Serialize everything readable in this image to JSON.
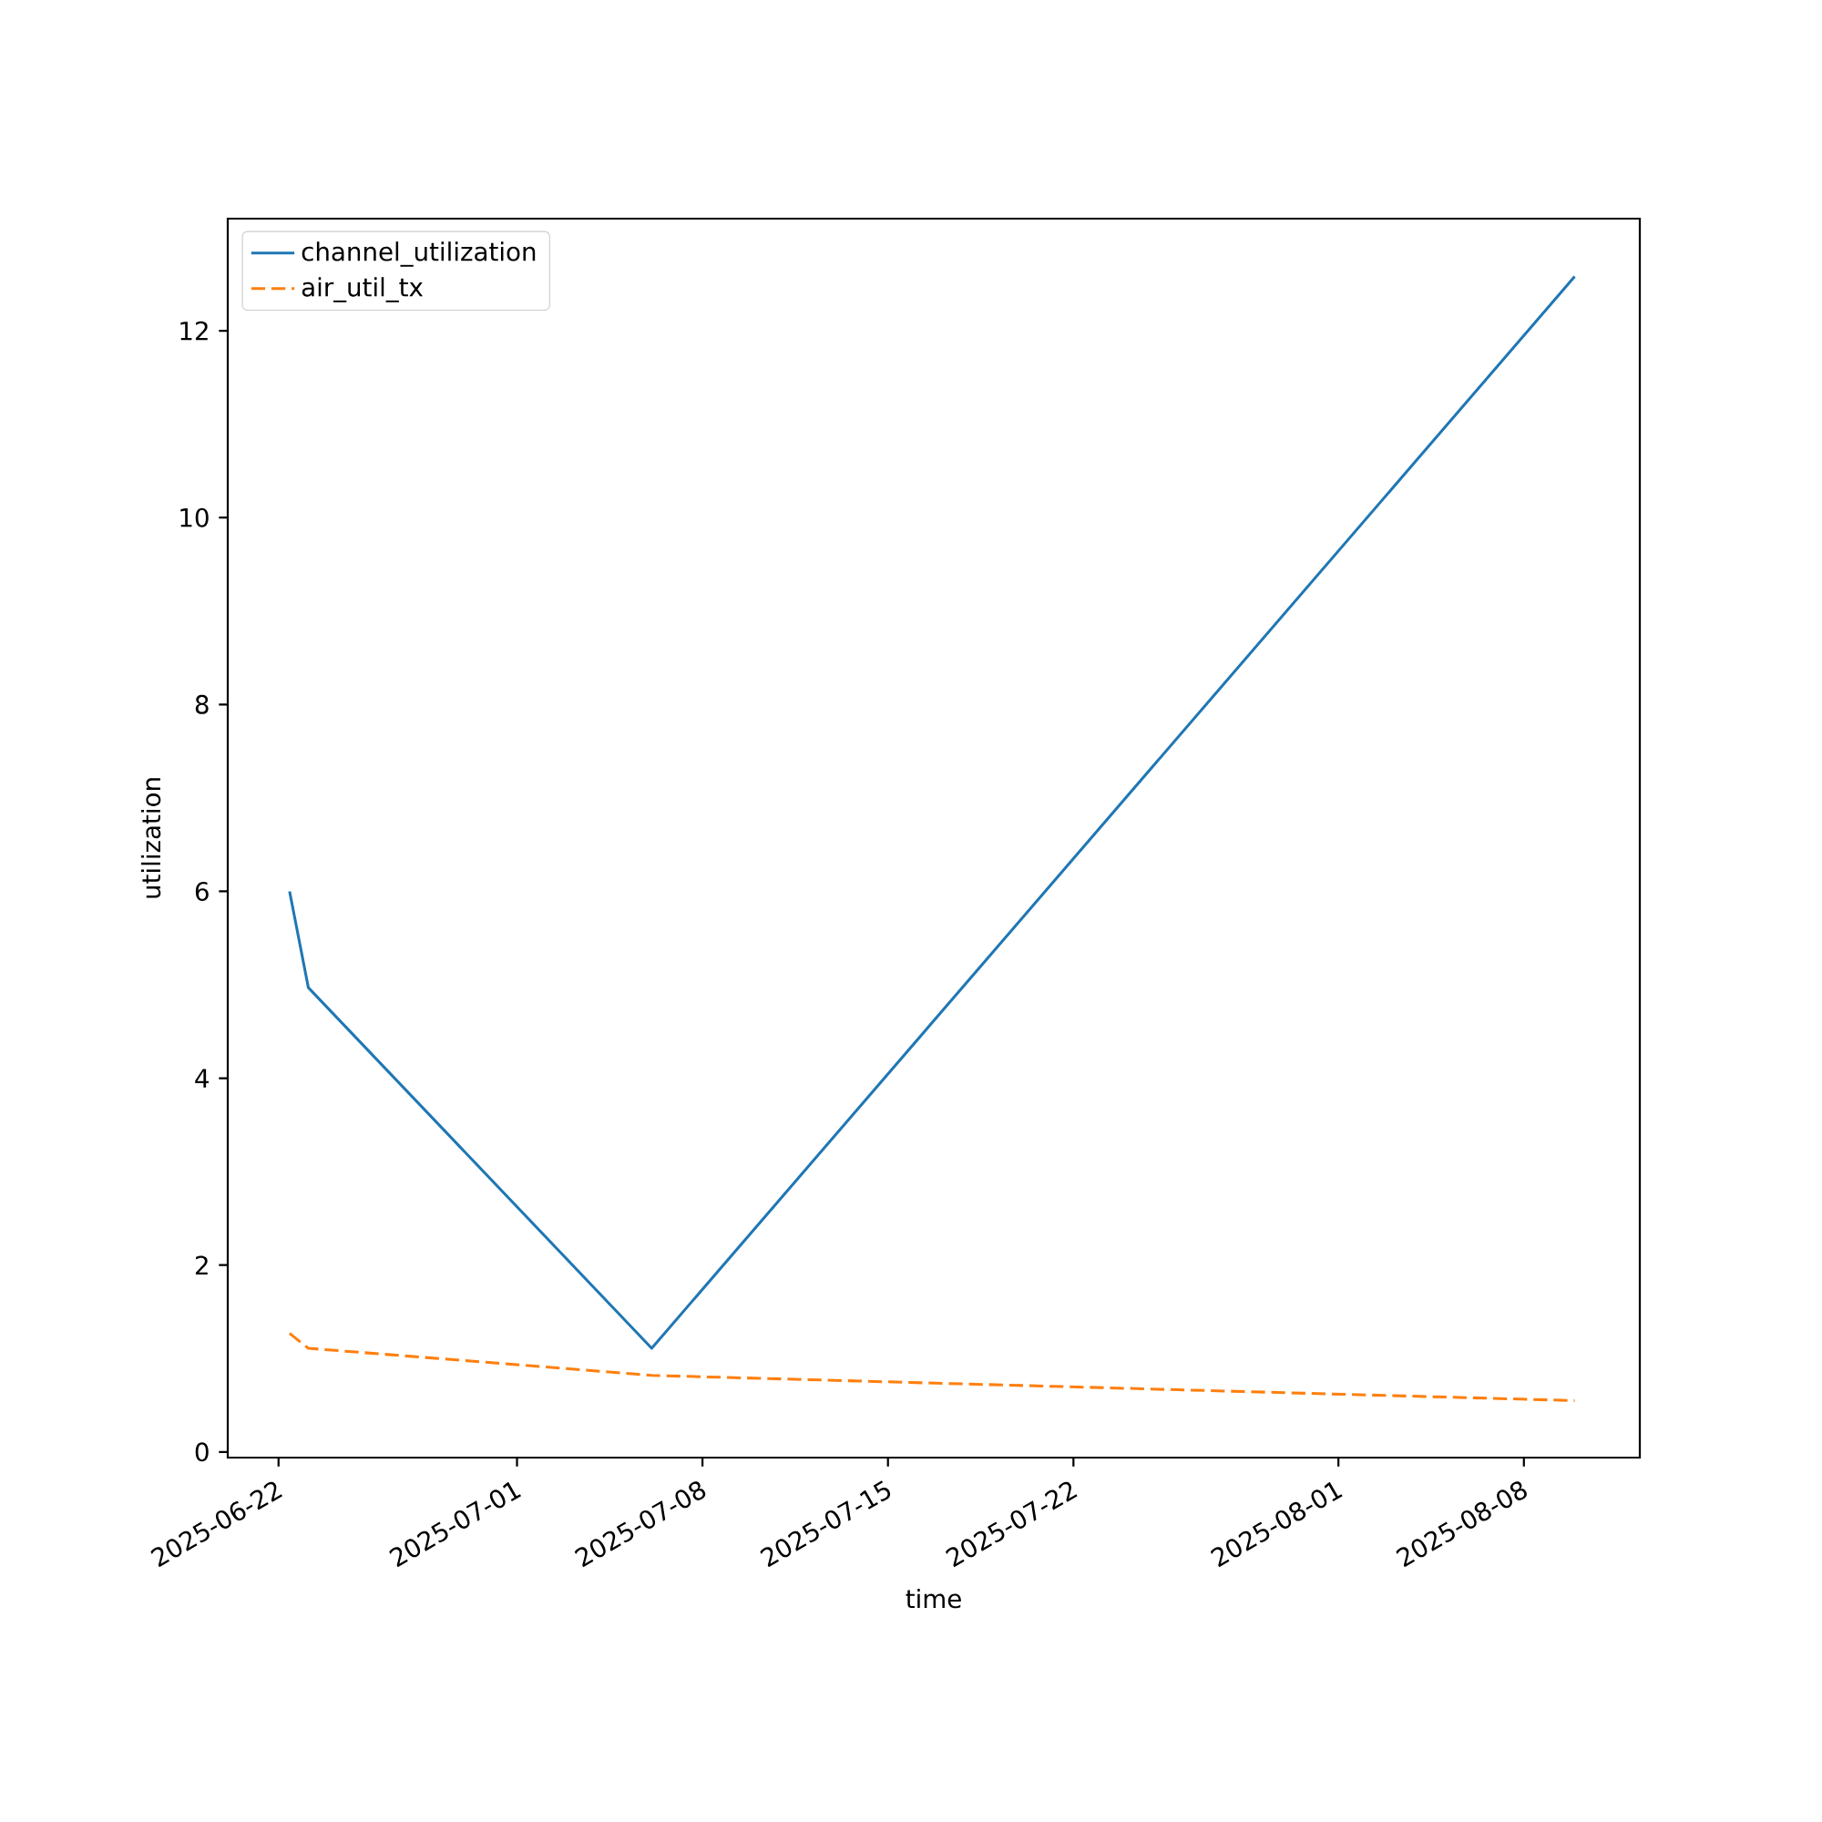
{
  "chart_data": {
    "type": "line",
    "xlabel": "time",
    "ylabel": "utilization",
    "x": [
      "2025-06-22T10:00",
      "2025-06-23T03:00",
      "2025-07-06T02:00",
      "2025-08-09T22:00"
    ],
    "series": [
      {
        "name": "channel_utilization",
        "color": "#1f77b4",
        "line_style": "solid",
        "values": [
          6.0,
          4.97,
          1.11,
          12.58
        ]
      },
      {
        "name": "air_util_tx",
        "color": "#ff7f0e",
        "line_style": "dashed",
        "values": [
          1.27,
          1.11,
          0.82,
          0.55
        ]
      }
    ],
    "xlim": [
      "2025-06-20T02:00",
      "2025-08-12T09:00"
    ],
    "ylim": [
      -0.06,
      13.2
    ],
    "xticks": [
      "2025-06-22",
      "2025-07-01",
      "2025-07-08",
      "2025-07-15",
      "2025-07-22",
      "2025-08-01",
      "2025-08-08"
    ],
    "yticks": [
      0,
      2,
      4,
      6,
      8,
      10,
      12
    ],
    "grid": false,
    "legend": "top left",
    "marker": "none"
  }
}
